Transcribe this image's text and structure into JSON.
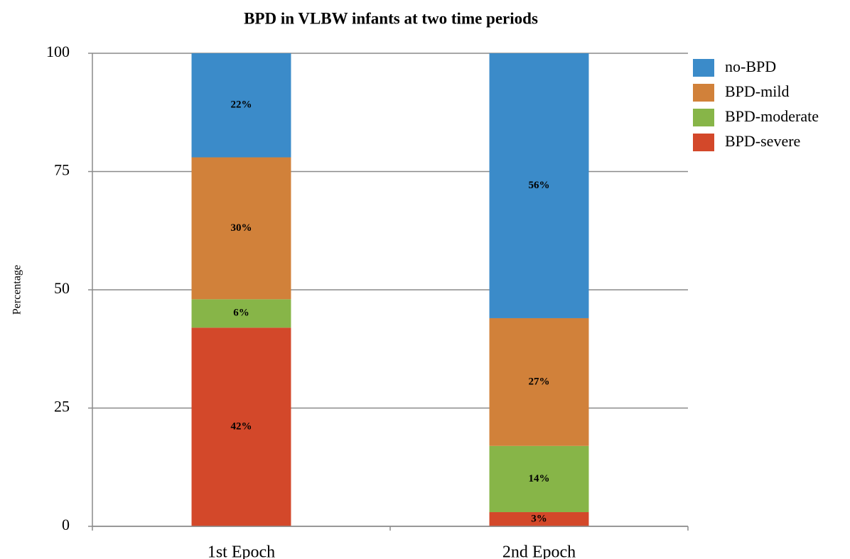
{
  "chart_data": {
    "type": "bar",
    "stacked": true,
    "title": "BPD in VLBW infants at two time periods",
    "ylabel": "Percentage",
    "categories": [
      "1st Epoch",
      "2nd Epoch"
    ],
    "series": [
      {
        "name": "no-BPD",
        "color": "#3b8bc9",
        "values": [
          22,
          56
        ],
        "value_labels": [
          "22%",
          "56%"
        ]
      },
      {
        "name": "BPD-mild",
        "color": "#d1813a",
        "values": [
          30,
          27
        ],
        "value_labels": [
          "30%",
          "27%"
        ]
      },
      {
        "name": "BPD-moderate",
        "color": "#87b548",
        "values": [
          6,
          14
        ],
        "value_labels": [
          "6%",
          "14%"
        ]
      },
      {
        "name": "BPD-severe",
        "color": "#d3482a",
        "values": [
          42,
          3
        ],
        "value_labels": [
          "42%",
          "3%"
        ]
      }
    ],
    "ylim": [
      0,
      100
    ],
    "yticks": [
      0,
      25,
      50,
      75,
      100
    ],
    "grid": true,
    "legend": "right"
  }
}
